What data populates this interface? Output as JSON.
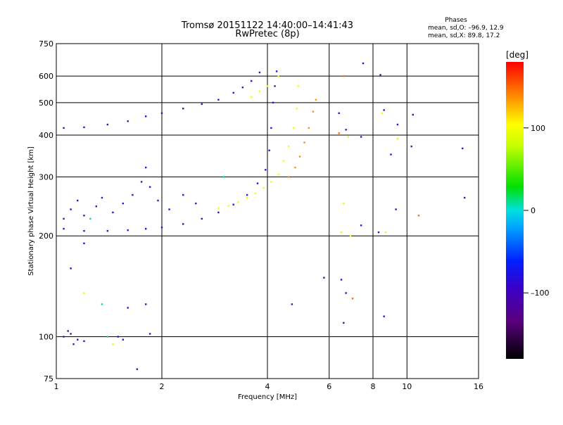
{
  "header": {
    "title_line1": "Tromsø 20151122 14:40:00–14:41:43",
    "title_line2": "RwPretec (8p)"
  },
  "stats": {
    "heading": "Phases",
    "line1": "mean, sd,O: –96.9, 12.9",
    "line2": "mean, sd,X:  89.8, 17.2"
  },
  "colorbar": {
    "label": "[deg]",
    "min": -180,
    "max": 180,
    "ticks": [
      {
        "value": 100,
        "label": "100"
      },
      {
        "value": 0,
        "label": "0"
      },
      {
        "value": -100,
        "label": "–100"
      }
    ]
  },
  "chart_data": {
    "type": "scatter",
    "title": "Tromsø 20151122 14:40:00–14:41:43",
    "subtitle": "RwPretec (8p)",
    "xlabel": "Frequency [MHz]",
    "ylabel": "Stationary phase Virtual Height [km]",
    "xscale": "log",
    "yscale": "log",
    "xlim": [
      1,
      16
    ],
    "ylim": [
      75,
      750
    ],
    "xticks": [
      {
        "value": 1,
        "label": "1"
      },
      {
        "value": 2,
        "label": "2"
      },
      {
        "value": 4,
        "label": "4"
      },
      {
        "value": 6,
        "label": "6"
      },
      {
        "value": 8,
        "label": "8"
      },
      {
        "value": 10,
        "label": "10"
      },
      {
        "value": 16,
        "label": "16"
      }
    ],
    "xgrid": [
      2,
      4,
      6,
      8,
      10
    ],
    "yticks": [
      {
        "value": 75,
        "label": "75"
      },
      {
        "value": 100,
        "label": "100"
      },
      {
        "value": 200,
        "label": "200"
      },
      {
        "value": 300,
        "label": "300"
      },
      {
        "value": 400,
        "label": "400"
      },
      {
        "value": 500,
        "label": "500"
      },
      {
        "value": 600,
        "label": "600"
      },
      {
        "value": 750,
        "label": "750"
      }
    ],
    "ygrid": [
      100,
      200,
      300,
      400,
      500,
      600
    ],
    "grid": true,
    "color_scale": "phase in degrees, -180 to 180, black-purple-blue-cyan-green-yellow-orange-red",
    "series": [
      {
        "points": [
          [
            1.05,
            210
          ],
          [
            1.2,
            207
          ],
          [
            1.4,
            207
          ],
          [
            1.6,
            208
          ],
          [
            1.8,
            210
          ],
          [
            2.0,
            212
          ],
          [
            2.3,
            217
          ],
          [
            2.6,
            225
          ],
          [
            2.9,
            235
          ],
          [
            3.2,
            248
          ],
          [
            3.5,
            265
          ],
          [
            3.75,
            287
          ],
          [
            3.95,
            315
          ],
          [
            4.05,
            360
          ],
          [
            4.1,
            420
          ],
          [
            4.15,
            500
          ],
          [
            4.2,
            560
          ],
          [
            4.25,
            620
          ]
        ],
        "phase": -110
      },
      {
        "points": [
          [
            1.05,
            225
          ],
          [
            1.1,
            240
          ],
          [
            1.15,
            255
          ],
          [
            1.2,
            230
          ],
          [
            1.3,
            245
          ],
          [
            1.35,
            260
          ],
          [
            1.45,
            235
          ],
          [
            1.55,
            250
          ],
          [
            1.65,
            265
          ],
          [
            1.75,
            290
          ],
          [
            1.8,
            320
          ],
          [
            1.85,
            280
          ],
          [
            1.95,
            255
          ],
          [
            2.1,
            240
          ],
          [
            2.3,
            265
          ],
          [
            2.5,
            250
          ]
        ],
        "phase": -110
      },
      {
        "points": [
          [
            1.05,
            420
          ],
          [
            1.2,
            422
          ],
          [
            1.4,
            430
          ],
          [
            1.6,
            440
          ],
          [
            1.8,
            455
          ],
          [
            2.0,
            465
          ],
          [
            2.3,
            480
          ],
          [
            2.6,
            495
          ],
          [
            2.9,
            510
          ],
          [
            3.2,
            535
          ],
          [
            3.4,
            555
          ],
          [
            3.6,
            580
          ],
          [
            3.8,
            615
          ]
        ],
        "phase": -110
      },
      {
        "points": [
          [
            2.9,
            242
          ],
          [
            3.1,
            246
          ],
          [
            3.3,
            252
          ],
          [
            3.5,
            260
          ],
          [
            3.7,
            268
          ],
          [
            3.9,
            278
          ],
          [
            4.1,
            290
          ],
          [
            4.3,
            305
          ],
          [
            4.45,
            335
          ],
          [
            4.6,
            370
          ],
          [
            4.75,
            420
          ],
          [
            4.85,
            480
          ],
          [
            4.9,
            560
          ]
        ],
        "phase": 95
      },
      {
        "points": [
          [
            4.6,
            300
          ],
          [
            4.8,
            320
          ],
          [
            4.95,
            345
          ],
          [
            5.1,
            380
          ],
          [
            5.25,
            420
          ],
          [
            5.4,
            470
          ],
          [
            5.5,
            510
          ]
        ],
        "phase": 140
      },
      {
        "points": [
          [
            3.6,
            520
          ],
          [
            3.8,
            540
          ],
          [
            4.0,
            560
          ],
          [
            4.3,
            600
          ]
        ],
        "phase": 95
      },
      {
        "points": [
          [
            1.05,
            100
          ],
          [
            1.1,
            102
          ],
          [
            1.15,
            98
          ],
          [
            1.12,
            95
          ],
          [
            1.08,
            104
          ],
          [
            1.2,
            97
          ]
        ],
        "phase": -110
      },
      {
        "points": [
          [
            1.2,
            190
          ],
          [
            1.1,
            160
          ],
          [
            1.5,
            100
          ],
          [
            1.7,
            80
          ],
          [
            1.85,
            102
          ],
          [
            1.8,
            125
          ],
          [
            1.6,
            122
          ],
          [
            1.55,
            98
          ],
          [
            4.7,
            125
          ],
          [
            5.8,
            150
          ],
          [
            6.5,
            148
          ],
          [
            6.7,
            135
          ],
          [
            7.4,
            215
          ],
          [
            7.4,
            395
          ],
          [
            8.3,
            205
          ],
          [
            8.4,
            605
          ],
          [
            8.6,
            475
          ],
          [
            8.6,
            115
          ],
          [
            9.3,
            240
          ],
          [
            9.4,
            430
          ],
          [
            10.3,
            370
          ],
          [
            10.4,
            460
          ],
          [
            14.4,
            365
          ],
          [
            14.6,
            260
          ],
          [
            6.6,
            110
          ],
          [
            6.4,
            465
          ],
          [
            6.7,
            415
          ],
          [
            7.5,
            655
          ],
          [
            9.0,
            350
          ]
        ],
        "phase": -110
      },
      {
        "points": [
          [
            6.5,
            205
          ],
          [
            6.6,
            250
          ],
          [
            6.9,
            200
          ],
          [
            8.5,
            465
          ],
          [
            9.4,
            390
          ],
          [
            1.45,
            95
          ],
          [
            1.2,
            135
          ],
          [
            6.8,
            395
          ],
          [
            8.7,
            205
          ]
        ],
        "phase": 90
      },
      {
        "points": [
          [
            1.35,
            125
          ],
          [
            1.4,
            100
          ],
          [
            1.25,
            225
          ],
          [
            3.0,
            300
          ]
        ],
        "phase": 10
      },
      {
        "points": [
          [
            7.0,
            130
          ],
          [
            6.6,
            600
          ],
          [
            10.8,
            230
          ],
          [
            6.4,
            405
          ]
        ],
        "phase": 150
      }
    ]
  }
}
